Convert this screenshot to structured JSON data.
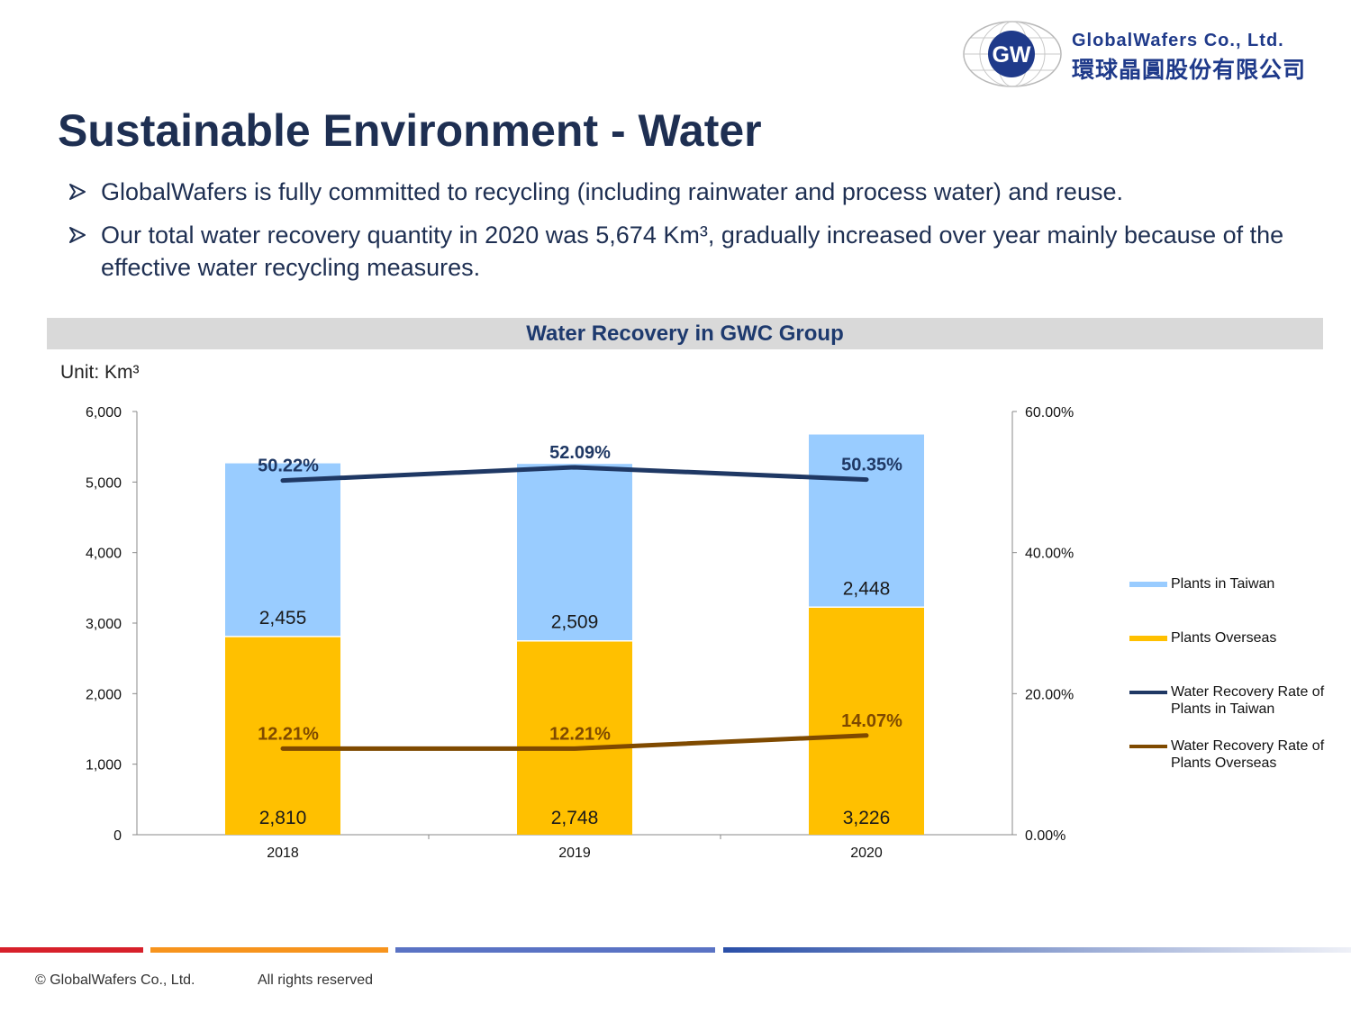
{
  "header": {
    "logo_initials": "GW",
    "company_en": "GlobalWafers Co., Ltd.",
    "company_zh": "環球晶圓股份有限公司"
  },
  "slide": {
    "title": "Sustainable Environment - Water",
    "bullets": [
      "GlobalWafers is fully committed to recycling (including rainwater and process water) and reuse.",
      "Our total water recovery quantity in 2020 was 5,674 Km³, gradually increased over year mainly because of the effective water recycling measures."
    ]
  },
  "colors": {
    "taiwan": "#99ccff",
    "overseas": "#ffc000",
    "rate_taiwan": "#1f3864",
    "rate_overseas": "#7f4a00",
    "title": "#1e2f52"
  },
  "chart_data": {
    "type": "bar",
    "title": "Water Recovery in GWC Group",
    "unit": "Unit: Km³",
    "categories": [
      "2018",
      "2019",
      "2020"
    ],
    "series": [
      {
        "name": "Plants Overseas",
        "type": "bar",
        "stack": "total",
        "values": [
          2810,
          2748,
          3226
        ],
        "labels": [
          "2,810",
          "2,748",
          "3,226"
        ]
      },
      {
        "name": "Plants in Taiwan",
        "type": "bar",
        "stack": "total",
        "values": [
          2455,
          2509,
          2448
        ],
        "labels": [
          "2,455",
          "2,509",
          "2,448"
        ]
      },
      {
        "name": "Water Recovery Rate of Plants in Taiwan",
        "type": "line",
        "axis": "right",
        "values": [
          50.22,
          52.09,
          50.35
        ],
        "labels": [
          "50.22%",
          "52.09%",
          "50.35%"
        ]
      },
      {
        "name": "Water Recovery Rate of Plants Overseas",
        "type": "line",
        "axis": "right",
        "values": [
          12.21,
          12.21,
          14.07
        ],
        "labels": [
          "12.21%",
          "12.21%",
          "14.07%"
        ]
      }
    ],
    "ylim": [
      0,
      6000
    ],
    "y_ticks": [
      "0",
      "1,000",
      "2,000",
      "3,000",
      "4,000",
      "5,000",
      "6,000"
    ],
    "y2lim": [
      0,
      60
    ],
    "y2_ticks": [
      "0.00%",
      "20.00%",
      "40.00%",
      "60.00%"
    ],
    "legend": [
      "Plants in Taiwan",
      "Plants Overseas",
      "Water Recovery Rate of Plants in Taiwan",
      "Water Recovery Rate of Plants Overseas"
    ],
    "legend_position": "right",
    "grid": false
  },
  "footer": {
    "copyright": "© GlobalWafers Co., Ltd.",
    "rights": "All rights reserved"
  }
}
